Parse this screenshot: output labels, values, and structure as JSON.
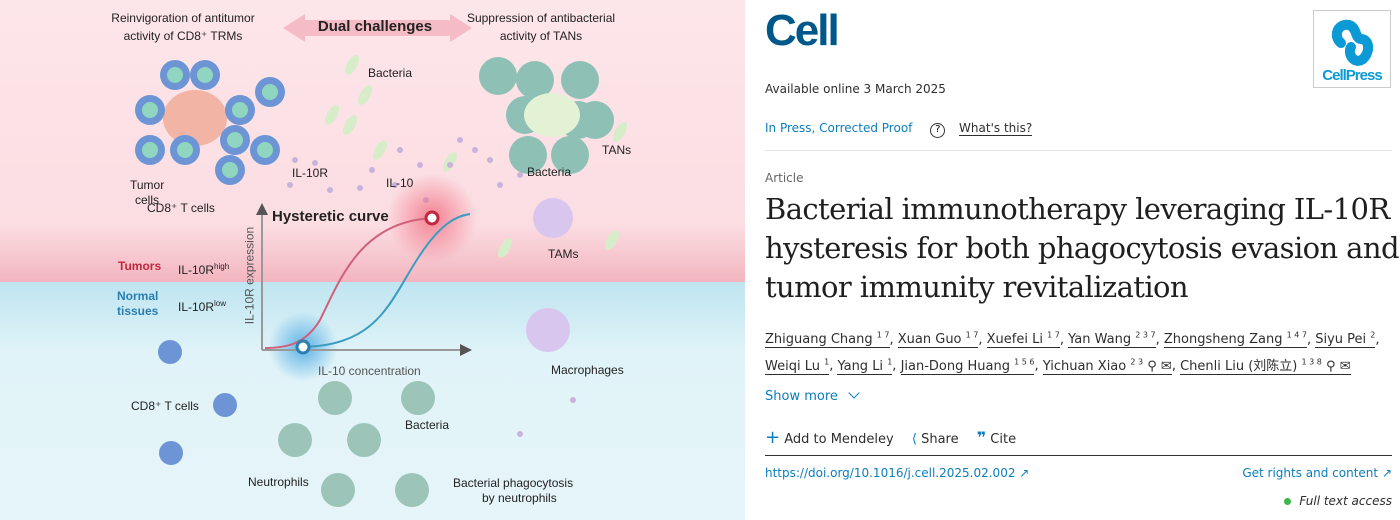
{
  "figure": {
    "top_left_title": [
      "Reinvigoration of antitumor",
      "activity of CD8⁺ TRMs"
    ],
    "center_title": "Dual challenges",
    "top_right_title": [
      "Suppression of antibacterial",
      "activity of TANs"
    ],
    "labels": {
      "bacteria_top": "Bacteria",
      "tumor_cells": [
        "Tumor",
        "cells"
      ],
      "il10r": "IL-10R",
      "il10": "IL-10",
      "cd8_top": "CD8⁺ T cells",
      "tans": "TANs",
      "bacteria_right": "Bacteria",
      "hysteretic_curve": "Hysteretic curve",
      "tams": "TAMs",
      "tumors": "Tumors",
      "il10r_high": "IL-10R",
      "high_sup": "high",
      "normal_tissues": [
        "Normal",
        "tissues"
      ],
      "il10r_low": "IL-10R",
      "low_sup": "low",
      "y_axis": "IL-10R expression",
      "x_axis": "IL-10 concentration",
      "macrophages": "Macrophages",
      "cd8_bottom": "CD8⁺ T cells",
      "bacteria_bottom": "Bacteria",
      "neutrophils": "Neutrophils",
      "phagocytosis": [
        "Bacterial phagocytosis",
        "by neutrophils"
      ]
    },
    "colors": {
      "tumor_bg": "#fbe3e6",
      "normal_bg": "#dff3f8",
      "tumor_label": "#c0283f",
      "normal_label": "#2a7fb0",
      "curve_up": "#3a9cc0",
      "curve_down": "#d0607a"
    }
  },
  "article": {
    "journal": "Cell",
    "publisher": "CellPress",
    "available": "Available online 3 March 2025",
    "status": "In Press, Corrected Proof",
    "whats_this": "What's this?",
    "type": "Article",
    "title": [
      "Bacterial immunotherapy leveraging IL-10R",
      "hysteresis for both phagocytosis evasion and",
      "tumor immunity revitalization"
    ],
    "authors": [
      {
        "name": "Zhiguang Chang",
        "sup": "1 7"
      },
      {
        "name": "Xuan Guo",
        "sup": "1 7"
      },
      {
        "name": "Xuefei Li",
        "sup": "1 7"
      },
      {
        "name": "Yan Wang",
        "sup": "2 3 7"
      },
      {
        "name": "Zhongsheng Zang",
        "sup": "1 4 7"
      },
      {
        "name": "Siyu Pei",
        "sup": "2"
      },
      {
        "name": "Weiqi Lu",
        "sup": "1"
      },
      {
        "name": "Yang Li",
        "sup": "1"
      },
      {
        "name": "Jian-Dong Huang",
        "sup": "1 5 6"
      },
      {
        "name": "Yichuan Xiao",
        "sup": "2 3",
        "icons": "person-icon mail-icon"
      },
      {
        "name": "Chenli Liu (刘陈立)",
        "sup": "1 3 8",
        "icons": "person-icon mail-icon"
      }
    ],
    "show_more": "Show more",
    "actions": {
      "mendeley": "Add to Mendeley",
      "share": "Share",
      "cite": "Cite"
    },
    "doi": "https://doi.org/10.1016/j.cell.2025.02.002",
    "rights": "Get rights and content",
    "access": "Full text access",
    "colors": {
      "journal": "#00578a",
      "link": "#0c7dbb",
      "access_dot": "#3eb54a"
    }
  }
}
